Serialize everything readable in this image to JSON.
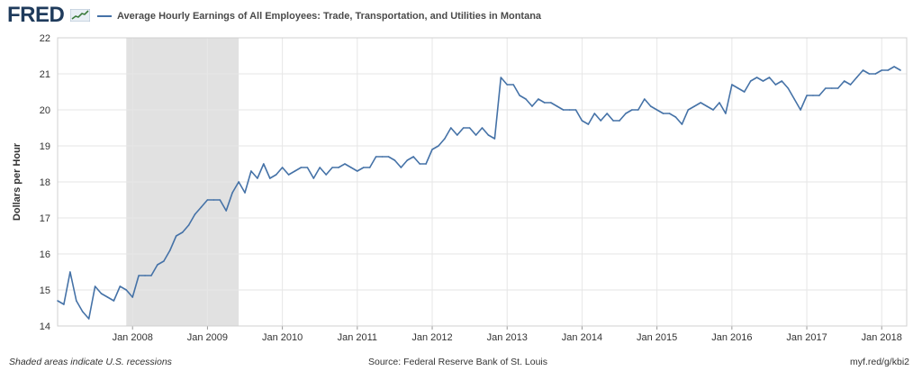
{
  "header": {
    "logo_text": "FRED",
    "series_title": "Average Hourly Earnings of All Employees: Trade, Transportation, and Utilities in Montana"
  },
  "footer": {
    "recession_note": "Shaded areas indicate U.S. recessions",
    "source": "Source: Federal Reserve Bank of St. Louis",
    "short_url": "myf.red/g/kbi2"
  },
  "colors": {
    "line": "#4572a7",
    "recession": "#e1e1e1",
    "grid": "#e6e6e6",
    "logo": "#1f3b5c"
  },
  "chart_data": {
    "type": "line",
    "title": "Average Hourly Earnings of All Employees: Trade, Transportation, and Utilities in Montana",
    "xlabel": "",
    "ylabel": "Dollars per Hour",
    "ylim": [
      14,
      22
    ],
    "yticks": [
      14,
      15,
      16,
      17,
      18,
      19,
      20,
      21,
      22
    ],
    "xlim": [
      "2007-01",
      "2018-05"
    ],
    "xticks": [
      {
        "label": "Jan 2008",
        "date": "2008-01"
      },
      {
        "label": "Jan 2009",
        "date": "2009-01"
      },
      {
        "label": "Jan 2010",
        "date": "2010-01"
      },
      {
        "label": "Jan 2011",
        "date": "2011-01"
      },
      {
        "label": "Jan 2012",
        "date": "2012-01"
      },
      {
        "label": "Jan 2013",
        "date": "2013-01"
      },
      {
        "label": "Jan 2014",
        "date": "2014-01"
      },
      {
        "label": "Jan 2015",
        "date": "2015-01"
      },
      {
        "label": "Jan 2016",
        "date": "2016-01"
      },
      {
        "label": "Jan 2017",
        "date": "2017-01"
      },
      {
        "label": "Jan 2018",
        "date": "2018-01"
      }
    ],
    "grid": true,
    "legend": "top-left",
    "recessions": [
      {
        "start": "2007-12",
        "end": "2009-06"
      }
    ],
    "series": [
      {
        "name": "Average Hourly Earnings of All Employees: Trade, Transportation, and Utilities in Montana",
        "start": "2007-01",
        "frequency": "monthly",
        "values": [
          14.7,
          14.6,
          15.5,
          14.7,
          14.4,
          14.2,
          15.1,
          14.9,
          14.8,
          14.7,
          15.1,
          15.0,
          14.8,
          15.4,
          15.4,
          15.4,
          15.7,
          15.8,
          16.1,
          16.5,
          16.6,
          16.8,
          17.1,
          17.3,
          17.5,
          17.5,
          17.5,
          17.2,
          17.7,
          18.0,
          17.7,
          18.3,
          18.1,
          18.5,
          18.1,
          18.2,
          18.4,
          18.2,
          18.3,
          18.4,
          18.4,
          18.1,
          18.4,
          18.2,
          18.4,
          18.4,
          18.5,
          18.4,
          18.3,
          18.4,
          18.4,
          18.7,
          18.7,
          18.7,
          18.6,
          18.4,
          18.6,
          18.7,
          18.5,
          18.5,
          18.9,
          19.0,
          19.2,
          19.5,
          19.3,
          19.5,
          19.5,
          19.3,
          19.5,
          19.3,
          19.2,
          20.9,
          20.7,
          20.7,
          20.4,
          20.3,
          20.1,
          20.3,
          20.2,
          20.2,
          20.1,
          20.0,
          20.0,
          20.0,
          19.7,
          19.6,
          19.9,
          19.7,
          19.9,
          19.7,
          19.7,
          19.9,
          20.0,
          20.0,
          20.3,
          20.1,
          20.0,
          19.9,
          19.9,
          19.8,
          19.6,
          20.0,
          20.1,
          20.2,
          20.1,
          20.0,
          20.2,
          19.9,
          20.7,
          20.6,
          20.5,
          20.8,
          20.9,
          20.8,
          20.9,
          20.7,
          20.8,
          20.6,
          20.3,
          20.0,
          20.4,
          20.4,
          20.4,
          20.6,
          20.6,
          20.6,
          20.8,
          20.7,
          20.9,
          21.1,
          21.0,
          21.0,
          21.1,
          21.1,
          21.2,
          21.1
        ]
      }
    ]
  }
}
